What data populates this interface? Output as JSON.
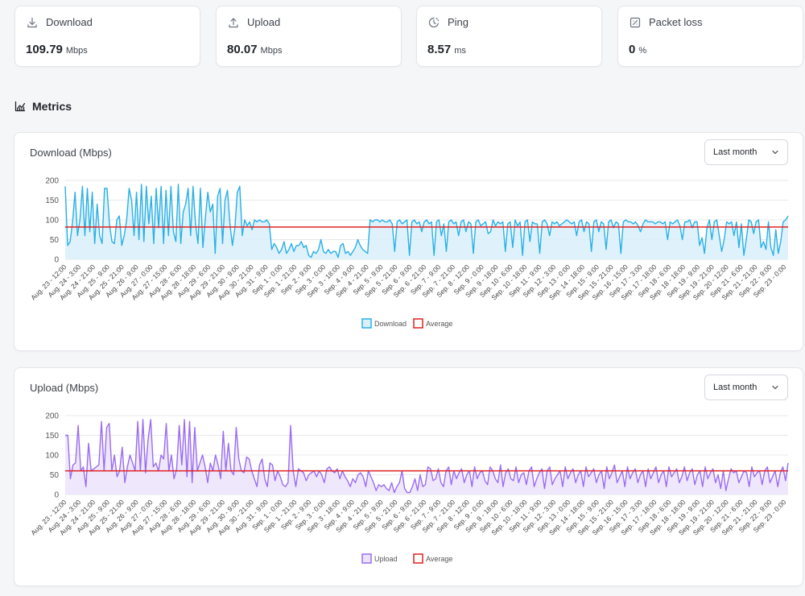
{
  "stats": [
    {
      "label": "Download",
      "value": "109.79",
      "unit": "Mbps",
      "icon": "download-icon"
    },
    {
      "label": "Upload",
      "value": "80.07",
      "unit": "Mbps",
      "icon": "upload-icon"
    },
    {
      "label": "Ping",
      "value": "8.57",
      "unit": "ms",
      "icon": "ping-clock-icon"
    },
    {
      "label": "Packet loss",
      "value": "0",
      "unit": "%",
      "icon": "packet-loss-icon"
    }
  ],
  "metrics": {
    "title": "Metrics",
    "icon": "chart-icon"
  },
  "charts": [
    {
      "title": "Download (Mbps)",
      "range": {
        "selected": "Last month"
      },
      "legend": {
        "series": "Download",
        "average": "Average"
      },
      "colors": {
        "line": "#2ab0e6",
        "fill": "#d9f0fa",
        "average": "#e02020"
      }
    },
    {
      "title": "Upload (Mbps)",
      "range": {
        "selected": "Last month"
      },
      "legend": {
        "series": "Upload",
        "average": "Average"
      },
      "colors": {
        "line": "#9b6cf2",
        "fill": "#ece4fc",
        "average": "#e02020"
      }
    }
  ],
  "chart_data": [
    {
      "type": "area",
      "title": "Download (Mbps)",
      "ylim": [
        0,
        200
      ],
      "y_ticks": [
        0,
        50,
        100,
        150,
        200
      ],
      "x_tick_labels": [
        "Aug. 23 - 12:00",
        "Aug. 24 - 3:00",
        "Aug. 24 - 21:00",
        "Aug. 25 - 9:00",
        "Aug. 25 - 21:00",
        "Aug. 26 - 9:00",
        "Aug. 27 - 0:00",
        "Aug. 27 - 15:00",
        "Aug. 28 - 6:00",
        "Aug. 28 - 18:00",
        "Aug. 29 - 6:00",
        "Aug. 29 - 21:00",
        "Aug. 30 - 9:00",
        "Aug. 30 - 21:00",
        "Aug. 31 - 9:00",
        "Sep. 1 - 0:00",
        "Sep. 1 - 21:00",
        "Sep. 2 - 9:00",
        "Sep. 3 - 0:00",
        "Sep. 3 - 18:00",
        "Sep. 4 - 9:00",
        "Sep. 4 - 21:00",
        "Sep. 5 - 9:00",
        "Sep. 5 - 21:00",
        "Sep. 6 - 9:00",
        "Sep. 6 - 21:00",
        "Sep. 7 - 9:00",
        "Sep. 7 - 21:00",
        "Sep. 8 - 12:00",
        "Sep. 9 - 0:00",
        "Sep. 9 - 18:00",
        "Sep. 10 - 6:00",
        "Sep. 10 - 18:00",
        "Sep. 11 - 9:00",
        "Sep. 12 - 3:00",
        "Sep. 13 - 0:00",
        "Sep. 14 - 18:00",
        "Sep. 15 - 9:00",
        "Sep. 15 - 21:00",
        "Sep. 16 - 15:00",
        "Sep. 17 - 3:00",
        "Sep. 17 - 18:00",
        "Sep. 18 - 6:00",
        "Sep. 18 - 18:00",
        "Sep. 19 - 9:00",
        "Sep. 19 - 21:00",
        "Sep. 20 - 12:00",
        "Sep. 21 - 6:00",
        "Sep. 21 - 21:00",
        "Sep. 22 - 9:00",
        "Sep. 23 - 0:00"
      ],
      "series": [
        {
          "name": "Download",
          "values": [
            185,
            35,
            45,
            95,
            170,
            60,
            100,
            185,
            60,
            180,
            70,
            170,
            40,
            140,
            60,
            40,
            180,
            180,
            90,
            45,
            40,
            100,
            110,
            35,
            60,
            100,
            180,
            150,
            60,
            170,
            50,
            190,
            45,
            185,
            90,
            160,
            40,
            180,
            80,
            185,
            40,
            175,
            60,
            185,
            70,
            45,
            190,
            40,
            120,
            140,
            180,
            60,
            185,
            90,
            40,
            180,
            30,
            105,
            170,
            120,
            140,
            15,
            160,
            180,
            40,
            150,
            175,
            90,
            35,
            80,
            170,
            185,
            60,
            100,
            85,
            95,
            75,
            100,
            95,
            100,
            95,
            95,
            100,
            90,
            25,
            40,
            30,
            15,
            25,
            45,
            15,
            25,
            40,
            20,
            35,
            35,
            45,
            30,
            35,
            10,
            5,
            20,
            15,
            25,
            50,
            20,
            15,
            25,
            15,
            20,
            20,
            5,
            35,
            40,
            15,
            20,
            10,
            20,
            30,
            50,
            35,
            25,
            20,
            15,
            100,
            95,
            100,
            100,
            95,
            100,
            95,
            95,
            100,
            90,
            20,
            95,
            100,
            90,
            95,
            100,
            10,
            95,
            100,
            90,
            95,
            70,
            95,
            100,
            90,
            95,
            10,
            95,
            100,
            60,
            90,
            20,
            95,
            100,
            90,
            95,
            60,
            95,
            100,
            70,
            95,
            90,
            15,
            95,
            100,
            85,
            90,
            95,
            65,
            70,
            100,
            85,
            95,
            90,
            95,
            20,
            90,
            95,
            30,
            100,
            85,
            95,
            10,
            95,
            100,
            45,
            95,
            90,
            90,
            15,
            95,
            100,
            90,
            60,
            95,
            90,
            95,
            85,
            90,
            95,
            100,
            95,
            90,
            95,
            60,
            95,
            100,
            70,
            95,
            90,
            20,
            95,
            100,
            70,
            95,
            90,
            25,
            95,
            100,
            80,
            95,
            90,
            15,
            95,
            100,
            95,
            95,
            90,
            95,
            85,
            70,
            90,
            100,
            95,
            95,
            95,
            90,
            95,
            95,
            90,
            95,
            50,
            95,
            90,
            95,
            100,
            85,
            50,
            95,
            95,
            100,
            80,
            95,
            95,
            35,
            55,
            15,
            80,
            100,
            50,
            95,
            100,
            60,
            20,
            50,
            95,
            90,
            95,
            60,
            95,
            30,
            90,
            10,
            50,
            100,
            95,
            65,
            95,
            100,
            30,
            45,
            25,
            95,
            30,
            10,
            75,
            15,
            45,
            95,
            100,
            110
          ]
        },
        {
          "name": "Average",
          "values": [
            82
          ]
        }
      ]
    },
    {
      "type": "area",
      "title": "Upload (Mbps)",
      "ylim": [
        0,
        200
      ],
      "y_ticks": [
        0,
        50,
        100,
        150,
        200
      ],
      "x_tick_labels": [
        "Aug. 23 - 12:00",
        "Aug. 24 - 3:00",
        "Aug. 24 - 21:00",
        "Aug. 25 - 9:00",
        "Aug. 25 - 21:00",
        "Aug. 26 - 9:00",
        "Aug. 27 - 0:00",
        "Aug. 27 - 15:00",
        "Aug. 28 - 6:00",
        "Aug. 28 - 18:00",
        "Aug. 29 - 6:00",
        "Aug. 29 - 21:00",
        "Aug. 30 - 9:00",
        "Aug. 30 - 21:00",
        "Aug. 31 - 9:00",
        "Sep. 1 - 0:00",
        "Sep. 1 - 21:00",
        "Sep. 2 - 9:00",
        "Sep. 3 - 0:00",
        "Sep. 3 - 18:00",
        "Sep. 4 - 9:00",
        "Sep. 4 - 21:00",
        "Sep. 5 - 9:00",
        "Sep. 5 - 21:00",
        "Sep. 6 - 9:00",
        "Sep. 6 - 21:00",
        "Sep. 7 - 9:00",
        "Sep. 7 - 21:00",
        "Sep. 8 - 12:00",
        "Sep. 9 - 0:00",
        "Sep. 9 - 18:00",
        "Sep. 10 - 6:00",
        "Sep. 10 - 18:00",
        "Sep. 11 - 9:00",
        "Sep. 12 - 3:00",
        "Sep. 13 - 0:00",
        "Sep. 14 - 18:00",
        "Sep. 15 - 9:00",
        "Sep. 15 - 21:00",
        "Sep. 16 - 15:00",
        "Sep. 17 - 3:00",
        "Sep. 17 - 18:00",
        "Sep. 18 - 6:00",
        "Sep. 18 - 18:00",
        "Sep. 19 - 9:00",
        "Sep. 19 - 21:00",
        "Sep. 20 - 12:00",
        "Sep. 21 - 6:00",
        "Sep. 21 - 21:00",
        "Sep. 22 - 9:00",
        "Sep. 23 - 0:00"
      ],
      "series": [
        {
          "name": "Upload",
          "values": [
            150,
            150,
            40,
            75,
            80,
            175,
            60,
            70,
            20,
            130,
            60,
            65,
            70,
            75,
            185,
            60,
            170,
            180,
            60,
            100,
            45,
            60,
            120,
            30,
            70,
            100,
            80,
            60,
            185,
            60,
            190,
            55,
            140,
            190,
            70,
            80,
            60,
            100,
            90,
            180,
            60,
            100,
            40,
            65,
            175,
            75,
            190,
            45,
            185,
            30,
            170,
            60,
            80,
            100,
            70,
            30,
            80,
            60,
            100,
            75,
            40,
            160,
            60,
            130,
            60,
            50,
            170,
            90,
            60,
            55,
            95,
            90,
            60,
            40,
            20,
            75,
            90,
            40,
            20,
            80,
            75,
            35,
            60,
            45,
            25,
            20,
            30,
            175,
            60,
            20,
            65,
            60,
            55,
            35,
            50,
            55,
            60,
            45,
            60,
            50,
            30,
            65,
            70,
            60,
            55,
            65,
            40,
            60,
            45,
            35,
            20,
            40,
            30,
            50,
            55,
            45,
            20,
            60,
            45,
            30,
            10,
            25,
            20,
            25,
            15,
            10,
            30,
            5,
            20,
            30,
            60,
            15,
            5,
            5,
            20,
            40,
            10,
            50,
            20,
            25,
            70,
            65,
            35,
            40,
            65,
            30,
            20,
            60,
            70,
            25,
            60,
            40,
            55,
            65,
            30,
            50,
            60,
            20,
            70,
            40,
            55,
            60,
            35,
            25,
            70,
            60,
            40,
            30,
            75,
            20,
            55,
            65,
            40,
            35,
            70,
            30,
            50,
            55,
            25,
            60,
            70,
            20,
            40,
            55,
            65,
            15,
            60,
            70,
            25,
            40,
            50,
            60,
            20,
            70,
            40,
            55,
            65,
            30,
            50,
            60,
            20,
            70,
            45,
            55,
            65,
            30,
            50,
            60,
            15,
            70,
            40,
            55,
            75,
            30,
            45,
            60,
            20,
            70,
            40,
            55,
            65,
            30,
            50,
            60,
            20,
            65,
            40,
            55,
            70,
            30,
            50,
            60,
            20,
            70,
            45,
            55,
            65,
            30,
            45,
            70,
            35,
            55,
            65,
            25,
            50,
            60,
            20,
            70,
            40,
            55,
            65,
            30,
            50,
            15,
            60,
            10,
            40,
            65,
            55,
            60,
            30,
            45,
            60,
            55,
            20,
            70,
            45,
            55,
            60,
            25,
            60,
            70,
            30,
            45,
            60,
            20,
            55,
            70,
            35,
            80
          ]
        },
        {
          "name": "Average",
          "values": [
            60
          ]
        }
      ]
    }
  ]
}
